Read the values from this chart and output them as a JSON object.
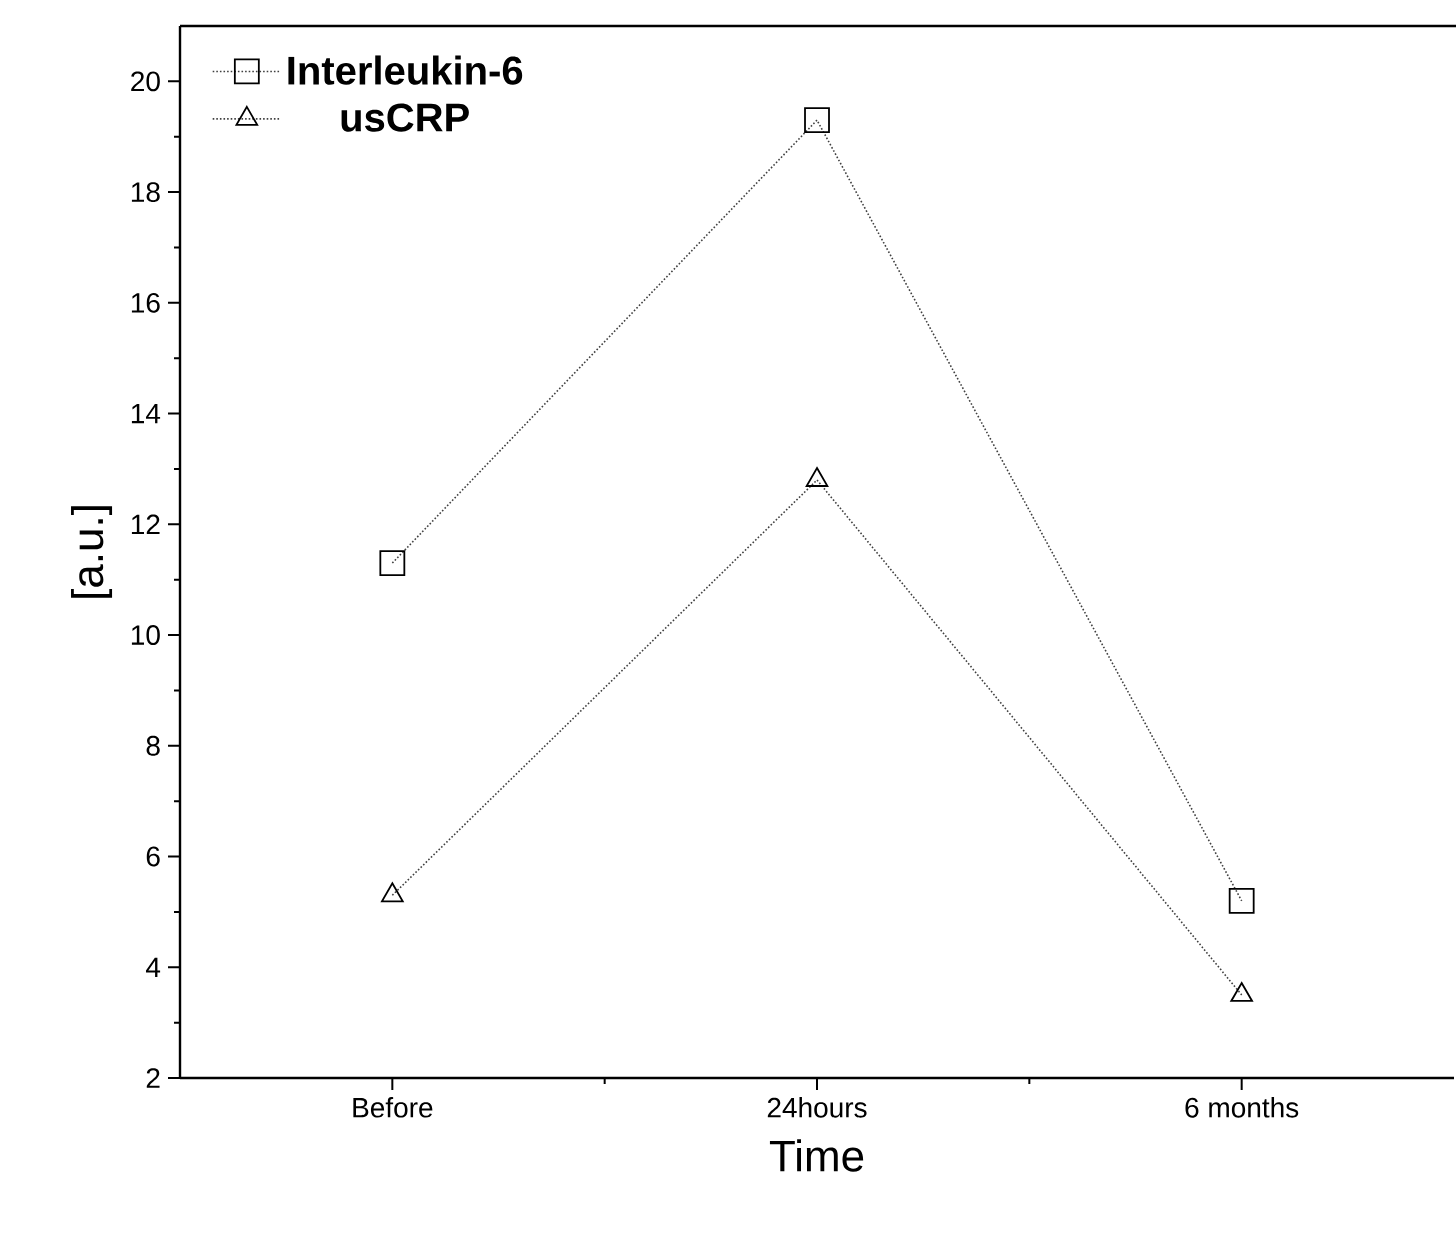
{
  "chart_data": {
    "type": "line",
    "xlabel": "Time",
    "ylabel": "[a.u.]",
    "categories": [
      "Before",
      "24hours",
      "6 months"
    ],
    "ylim": [
      2,
      21
    ],
    "yticks": [
      2,
      4,
      6,
      8,
      10,
      12,
      14,
      16,
      18,
      20
    ],
    "legend": "top left",
    "line_style": "dotted",
    "series": [
      {
        "name": "Interleukin-6",
        "color": "#000000",
        "marker": "square",
        "values": [
          11.3,
          19.3,
          5.2
        ]
      },
      {
        "name": "usCRP",
        "color": "#000000",
        "marker": "triangle",
        "values": [
          5.3,
          12.8,
          3.5
        ]
      }
    ]
  }
}
